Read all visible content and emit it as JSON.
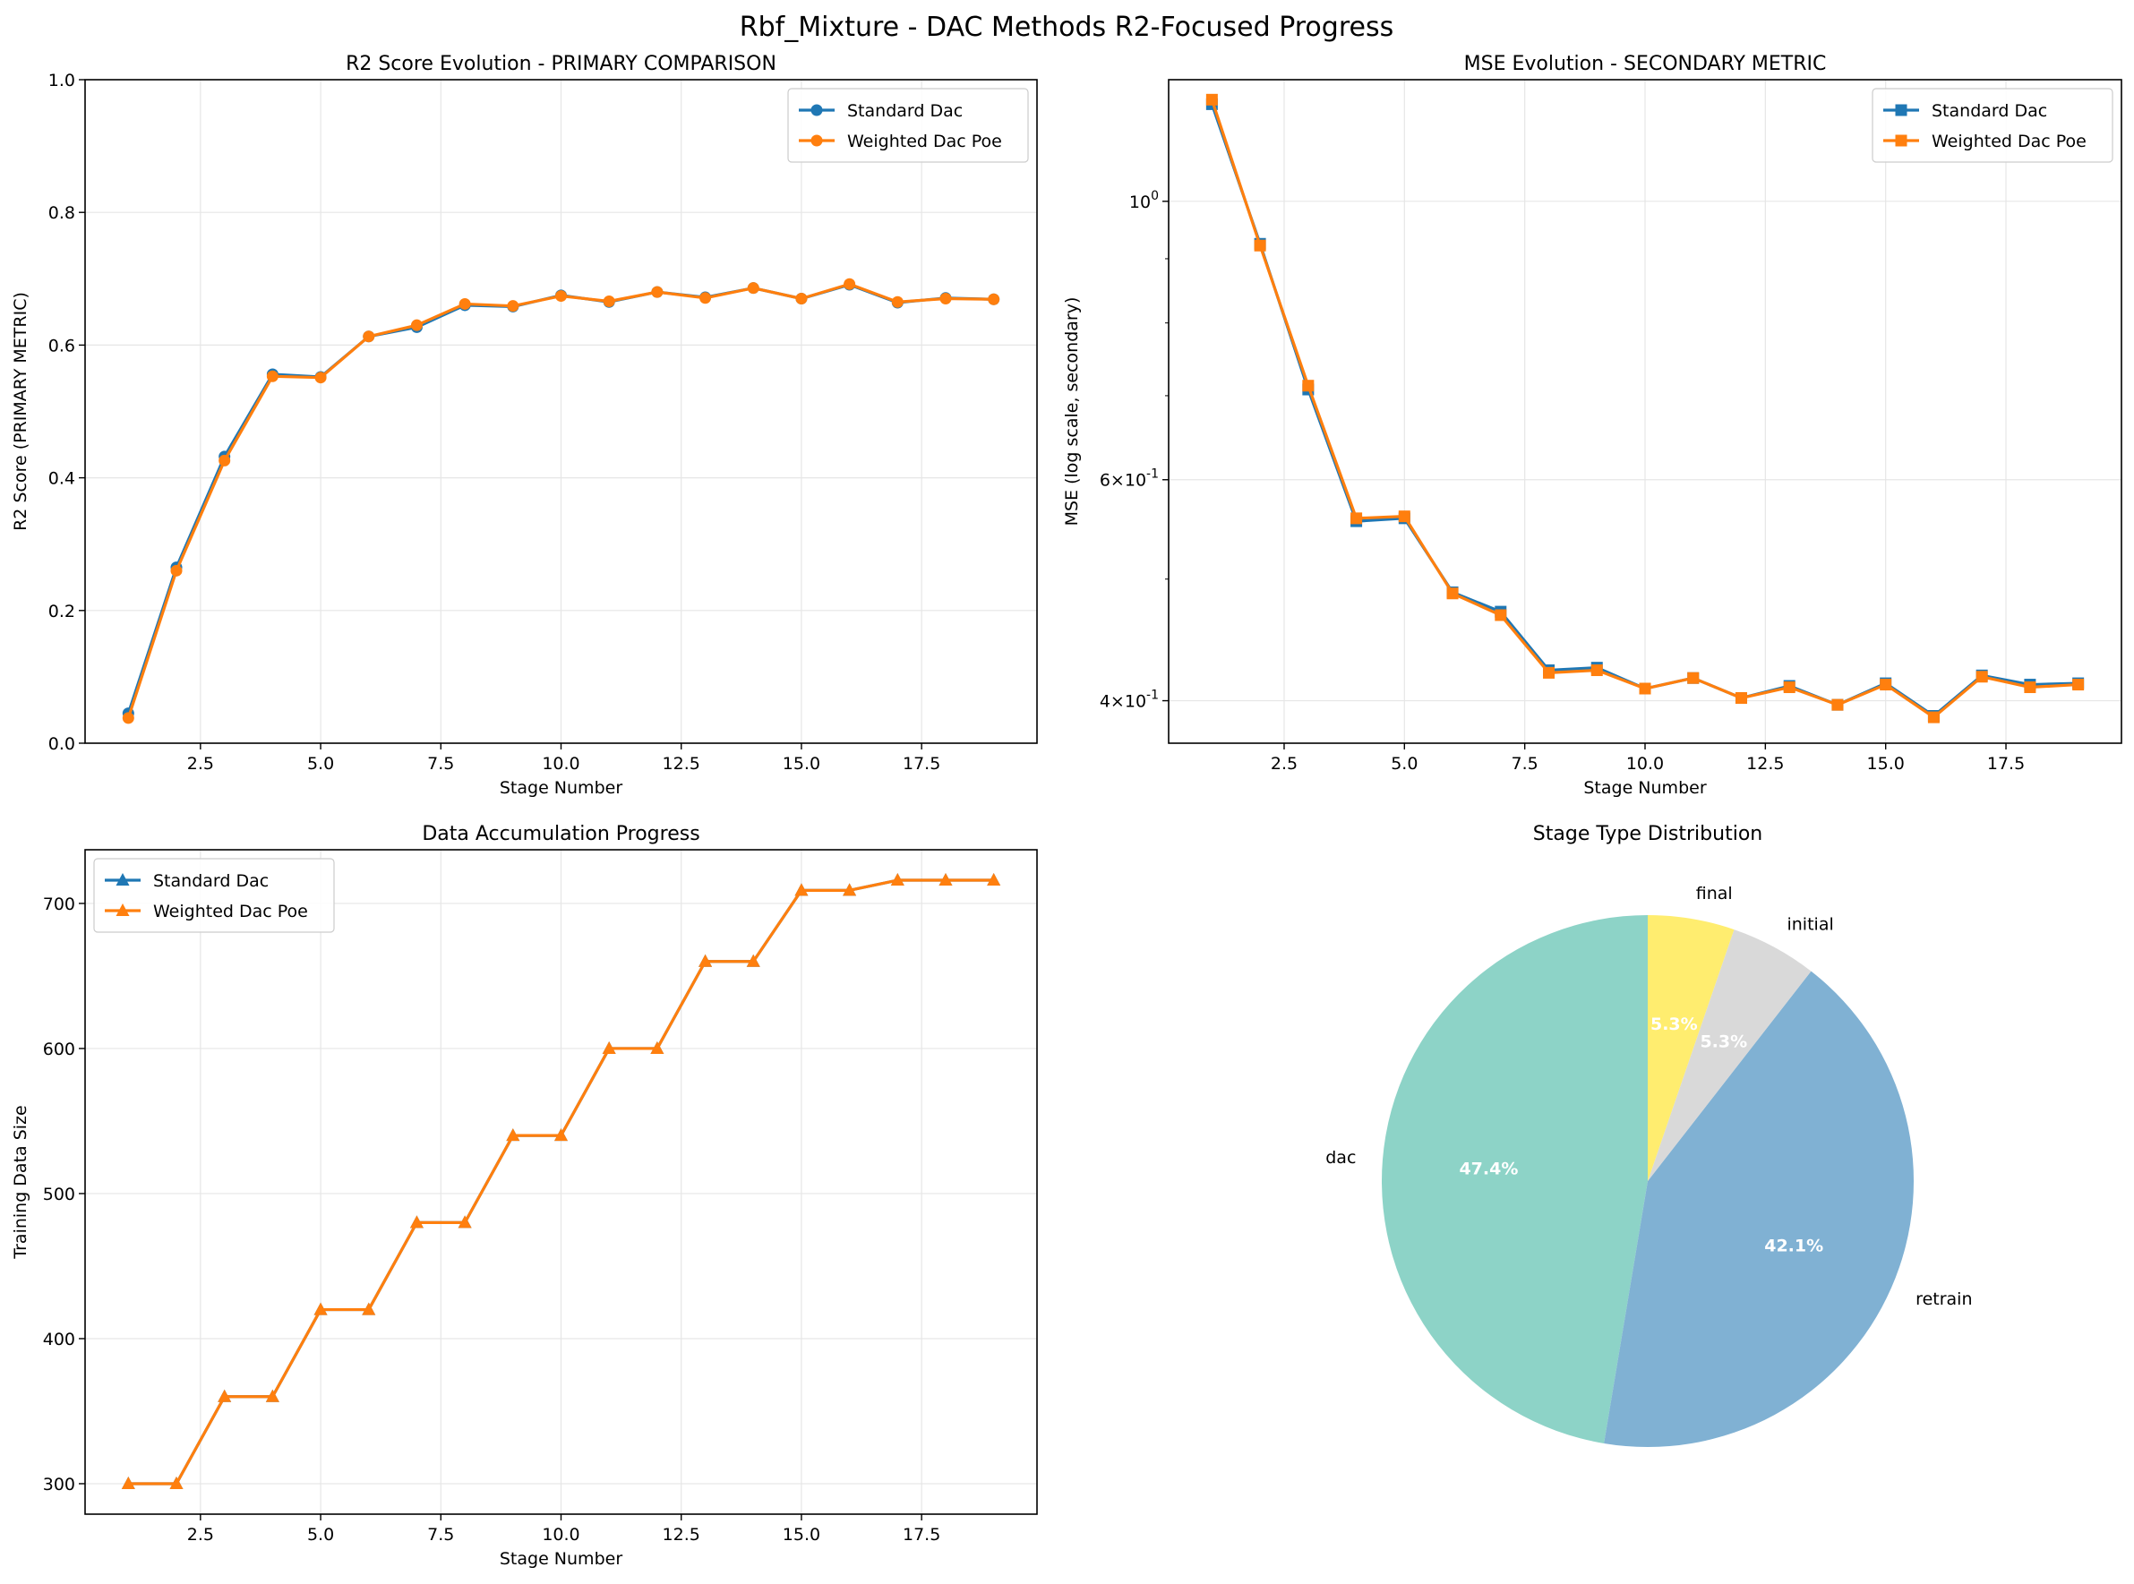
{
  "figure_title": "Rbf_Mixture - DAC Methods R2-Focused Progress",
  "colors": {
    "standard": "#1f77b4",
    "weighted": "#ff7f0e",
    "grid": "#e6e6e6",
    "pie": [
      "#8dd3c7",
      "#80b1d3",
      "#d9d9d9",
      "#ffed6f"
    ]
  },
  "chart_data": [
    {
      "id": "r2",
      "type": "line",
      "title": "R2 Score Evolution - PRIMARY COMPARISON",
      "xlabel": "Stage Number",
      "ylabel": "R2 Score (PRIMARY METRIC)",
      "xlim": [
        0.1,
        19.9
      ],
      "ylim": [
        0,
        1.0
      ],
      "xticks": [
        2.5,
        5.0,
        7.5,
        10.0,
        12.5,
        15.0,
        17.5
      ],
      "xtick_labels": [
        "2.5",
        "5.0",
        "7.5",
        "10.0",
        "12.5",
        "15.0",
        "17.5"
      ],
      "yticks": [
        0.0,
        0.2,
        0.4,
        0.6,
        0.8,
        1.0
      ],
      "ytick_labels": [
        "0.0",
        "0.2",
        "0.4",
        "0.6",
        "0.8",
        "1.0"
      ],
      "grid": true,
      "legend_position": "upper right",
      "marker": "circle",
      "x": [
        1,
        2,
        3,
        4,
        5,
        6,
        7,
        8,
        9,
        10,
        11,
        12,
        13,
        14,
        15,
        16,
        17,
        18,
        19
      ],
      "series": [
        {
          "name": "Standard Dac",
          "values": [
            0.045,
            0.265,
            0.432,
            0.556,
            0.552,
            0.613,
            0.627,
            0.66,
            0.658,
            0.675,
            0.665,
            0.68,
            0.672,
            0.686,
            0.67,
            0.691,
            0.664,
            0.671,
            0.669
          ]
        },
        {
          "name": "Weighted Dac Poe",
          "values": [
            0.038,
            0.26,
            0.426,
            0.553,
            0.551,
            0.613,
            0.63,
            0.662,
            0.659,
            0.674,
            0.666,
            0.68,
            0.671,
            0.686,
            0.67,
            0.692,
            0.665,
            0.67,
            0.669
          ]
        }
      ]
    },
    {
      "id": "mse",
      "type": "line",
      "title": "MSE Evolution - SECONDARY METRIC",
      "xlabel": "Stage Number",
      "ylabel": "MSE (log scale, secondary)",
      "yscale": "log",
      "xlim": [
        0.1,
        19.9
      ],
      "ylim": [
        0.37,
        1.25
      ],
      "xticks": [
        2.5,
        5.0,
        7.5,
        10.0,
        12.5,
        15.0,
        17.5
      ],
      "xtick_labels": [
        "2.5",
        "5.0",
        "7.5",
        "10.0",
        "12.5",
        "15.0",
        "17.5"
      ],
      "yticks": [
        1.0,
        0.6,
        0.4
      ],
      "ytick_labels": [
        "10^0",
        "6×10^-1",
        "4×10^-1"
      ],
      "grid": true,
      "legend_position": "upper right",
      "marker": "square",
      "x": [
        1,
        2,
        3,
        4,
        5,
        6,
        7,
        8,
        9,
        10,
        11,
        12,
        13,
        14,
        15,
        16,
        17,
        18,
        19
      ],
      "series": [
        {
          "name": "Standard Dac",
          "values": [
            1.195,
            0.925,
            0.708,
            0.556,
            0.559,
            0.488,
            0.471,
            0.423,
            0.425,
            0.409,
            0.417,
            0.402,
            0.411,
            0.397,
            0.413,
            0.389,
            0.419,
            0.412,
            0.413
          ]
        },
        {
          "name": "Weighted Dac Poe",
          "values": [
            1.205,
            0.922,
            0.713,
            0.559,
            0.561,
            0.487,
            0.468,
            0.421,
            0.423,
            0.409,
            0.417,
            0.402,
            0.41,
            0.397,
            0.412,
            0.388,
            0.418,
            0.41,
            0.412
          ]
        }
      ]
    },
    {
      "id": "data",
      "type": "line",
      "title": "Data Accumulation Progress",
      "xlabel": "Stage Number",
      "ylabel": "Training Data Size",
      "xlim": [
        0.1,
        19.9
      ],
      "ylim": [
        279,
        737
      ],
      "xticks": [
        2.5,
        5.0,
        7.5,
        10.0,
        12.5,
        15.0,
        17.5
      ],
      "xtick_labels": [
        "2.5",
        "5.0",
        "7.5",
        "10.0",
        "12.5",
        "15.0",
        "17.5"
      ],
      "yticks": [
        300,
        400,
        500,
        600,
        700
      ],
      "ytick_labels": [
        "300",
        "400",
        "500",
        "600",
        "700"
      ],
      "grid": true,
      "legend_position": "upper left",
      "marker": "triangle",
      "x": [
        1,
        2,
        3,
        4,
        5,
        6,
        7,
        8,
        9,
        10,
        11,
        12,
        13,
        14,
        15,
        16,
        17,
        18,
        19
      ],
      "series": [
        {
          "name": "Standard Dac",
          "values": [
            300,
            300,
            360,
            360,
            420,
            420,
            480,
            480,
            540,
            540,
            600,
            600,
            660,
            660,
            709,
            709,
            716,
            716,
            716
          ]
        },
        {
          "name": "Weighted Dac Poe",
          "values": [
            300,
            300,
            360,
            360,
            420,
            420,
            480,
            480,
            540,
            540,
            600,
            600,
            660,
            660,
            709,
            709,
            716,
            716,
            716
          ]
        }
      ]
    },
    {
      "id": "pie",
      "type": "pie",
      "title": "Stage Type Distribution",
      "start_angle": 90,
      "direction": "counterclockwise",
      "slices": [
        {
          "label": "dac",
          "value": 9,
          "pct": "47.4%"
        },
        {
          "label": "retrain",
          "value": 8,
          "pct": "42.1%"
        },
        {
          "label": "initial",
          "value": 1,
          "pct": "5.3%"
        },
        {
          "label": "final",
          "value": 1,
          "pct": "5.3%"
        }
      ]
    }
  ]
}
